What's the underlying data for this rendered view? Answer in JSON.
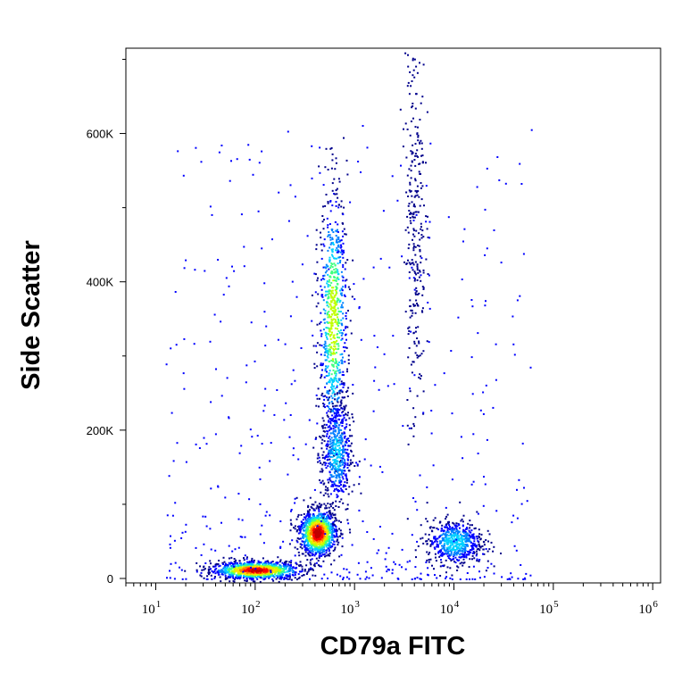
{
  "chart_data": {
    "type": "scatter",
    "subtype": "flow-cytometry-density-plot",
    "title": "",
    "xlabel": "CD79a FITC",
    "ylabel": "Side Scatter",
    "x_scale": "log",
    "xlim": [
      5,
      1200000
    ],
    "ylim": [
      -6000,
      715000
    ],
    "x_ticks": [
      {
        "value": 10,
        "base": "10",
        "exp": "1"
      },
      {
        "value": 100,
        "base": "10",
        "exp": "2"
      },
      {
        "value": 1000,
        "base": "10",
        "exp": "3"
      },
      {
        "value": 10000,
        "base": "10",
        "exp": "4"
      },
      {
        "value": 100000,
        "base": "10",
        "exp": "5"
      },
      {
        "value": 1000000,
        "base": "10",
        "exp": "6"
      }
    ],
    "y_ticks": [
      {
        "value": 0,
        "label": "0"
      },
      {
        "value": 200000,
        "label": "200K"
      },
      {
        "value": 400000,
        "label": "400K"
      },
      {
        "value": 600000,
        "label": "600K"
      }
    ],
    "grid": false,
    "legend": "none",
    "color_scale": [
      "#00008b",
      "#0000ff",
      "#0080ff",
      "#00d0ff",
      "#40ff80",
      "#c0ff00",
      "#ffe000",
      "#ff8000",
      "#ff0000",
      "#c00000"
    ],
    "populations": [
      {
        "x_center": 100,
        "y_center": 12000,
        "x_spread": 0.22,
        "y_spread": 6000,
        "peak_density": 0.95
      },
      {
        "x_center": 420,
        "y_center": 62000,
        "x_spread": 0.09,
        "y_spread": 15000,
        "peak_density": 1.0
      },
      {
        "x_center": 600,
        "y_center": 350000,
        "x_spread": 0.07,
        "y_spread": 90000,
        "peak_density": 0.6
      },
      {
        "x_center": 650,
        "y_center": 170000,
        "x_spread": 0.08,
        "y_spread": 40000,
        "peak_density": 0.35
      },
      {
        "x_center": 10000,
        "y_center": 50000,
        "x_spread": 0.14,
        "y_spread": 15000,
        "peak_density": 0.4
      },
      {
        "x_center": 4000,
        "y_center": 500000,
        "x_spread": 0.05,
        "y_spread": 150000,
        "peak_density": 0.08
      }
    ]
  }
}
